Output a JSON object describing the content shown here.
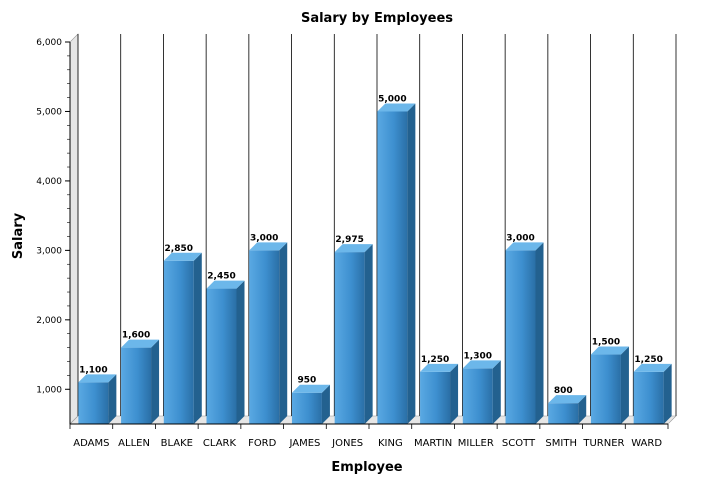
{
  "colors": {
    "bar_front": "#3d8fcf",
    "bar_front_light": "#5aa9e3",
    "bar_front_dark": "#2a6fa6",
    "bar_top": "#6cb7ea",
    "bar_side": "#23618f",
    "wall": "#e6e6e6",
    "grid": "#000000"
  },
  "chart_data": {
    "type": "bar",
    "title": "Salary by Employees",
    "xlabel": "Employee",
    "ylabel": "Salary",
    "categories": [
      "ADAMS",
      "ALLEN",
      "BLAKE",
      "CLARK",
      "FORD",
      "JAMES",
      "JONES",
      "KING",
      "MARTIN",
      "MILLER",
      "SCOTT",
      "SMITH",
      "TURNER",
      "WARD"
    ],
    "values": [
      1100,
      1600,
      2850,
      2450,
      3000,
      950,
      2975,
      5000,
      1250,
      1300,
      3000,
      800,
      1500,
      1250
    ],
    "value_labels": [
      "1,100",
      "1,600",
      "2,850",
      "2,450",
      "3,000",
      "950",
      "2,975",
      "5,000",
      "1,250",
      "1,300",
      "3,000",
      "800",
      "1,500",
      "1,250"
    ],
    "ylim": [
      500,
      6000
    ],
    "yticks": [
      1000,
      2000,
      3000,
      4000,
      5000,
      6000
    ],
    "ytick_labels": [
      "1,000",
      "2,000",
      "3,000",
      "4,000",
      "5,000",
      "6,000"
    ],
    "style": "3d",
    "grid": "vertical",
    "legend": "none"
  }
}
